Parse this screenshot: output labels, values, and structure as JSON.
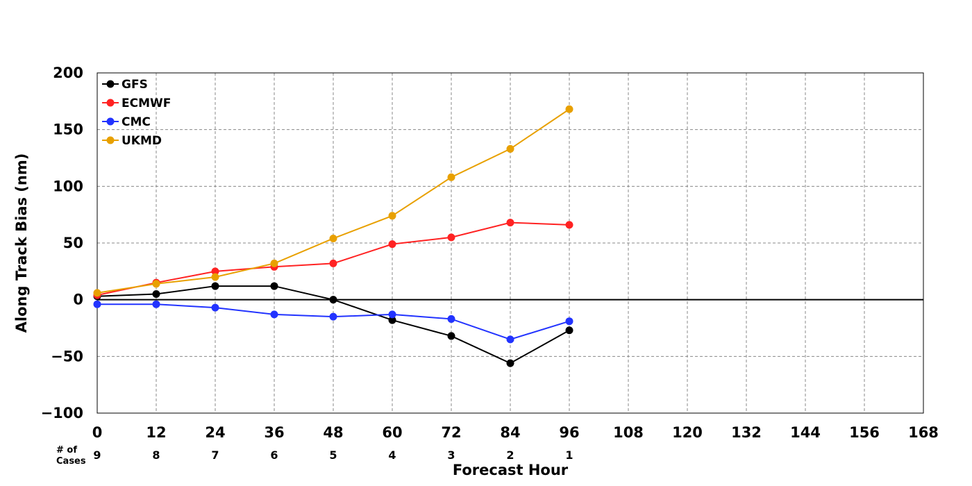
{
  "chart_data": {
    "type": "line",
    "title": "",
    "xlabel": "Forecast Hour",
    "ylabel": "Along Track Bias (nm)",
    "xlim": [
      0,
      168
    ],
    "ylim": [
      -100,
      200
    ],
    "xticks": [
      0,
      12,
      24,
      36,
      48,
      60,
      72,
      84,
      96,
      108,
      120,
      132,
      144,
      156,
      168
    ],
    "yticks": [
      -100,
      -50,
      0,
      50,
      100,
      150,
      200
    ],
    "ytick_labels": [
      "−100",
      "−50",
      "0",
      "50",
      "100",
      "150",
      "200"
    ],
    "grid": true,
    "legend_position": "top-left",
    "cases_header": "# of Cases",
    "cases_header_lines": [
      "# of",
      "Cases"
    ],
    "cases": [
      {
        "x": 0,
        "n": "9"
      },
      {
        "x": 12,
        "n": "8"
      },
      {
        "x": 24,
        "n": "7"
      },
      {
        "x": 36,
        "n": "6"
      },
      {
        "x": 48,
        "n": "5"
      },
      {
        "x": 60,
        "n": "4"
      },
      {
        "x": 72,
        "n": "3"
      },
      {
        "x": 84,
        "n": "2"
      },
      {
        "x": 96,
        "n": "1"
      }
    ],
    "x": [
      0,
      12,
      24,
      36,
      48,
      60,
      72,
      84,
      96
    ],
    "series": [
      {
        "name": "GFS",
        "color": "#000000",
        "values": [
          3,
          5,
          12,
          12,
          0,
          -18,
          -32,
          -56,
          -27
        ]
      },
      {
        "name": "ECMWF",
        "color": "#ff2222",
        "values": [
          4,
          15,
          25,
          29,
          32,
          49,
          55,
          68,
          66
        ]
      },
      {
        "name": "CMC",
        "color": "#2233ff",
        "values": [
          -4,
          -4,
          -7,
          -13,
          -15,
          -13,
          -17,
          -35,
          -19
        ]
      },
      {
        "name": "UKMD",
        "color": "#e8a000",
        "values": [
          6,
          14,
          20,
          32,
          54,
          74,
          108,
          133,
          168
        ]
      }
    ]
  }
}
